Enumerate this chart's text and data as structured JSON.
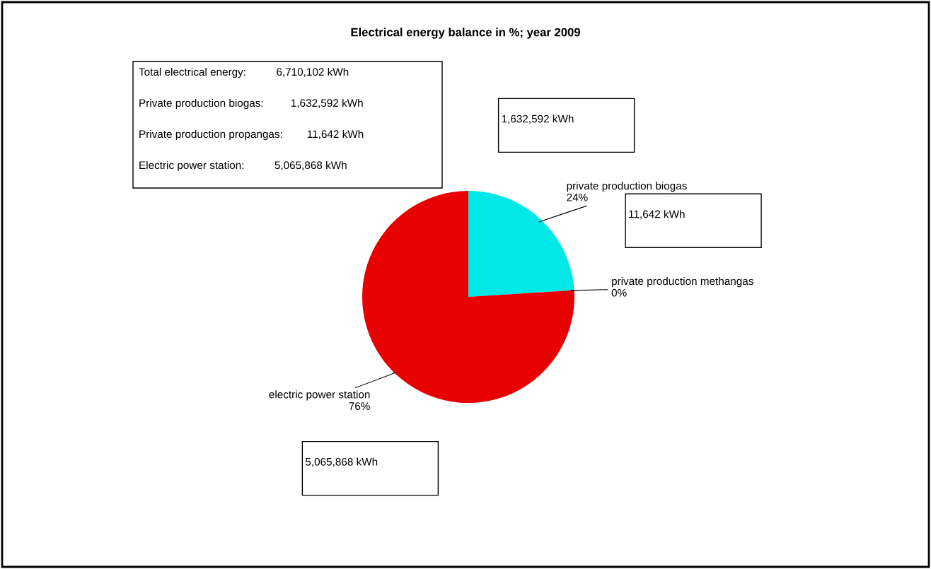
{
  "chart_data": {
    "type": "pie",
    "title": "Electrical energy balance in %; year 2009",
    "categories": [
      "private production biogas",
      "private production methangas",
      "electric power station"
    ],
    "values": [
      24,
      0,
      76
    ],
    "value_labels": [
      "24%",
      "0%",
      "76%"
    ],
    "colors": [
      "#00e8e8",
      "#9999ff",
      "#e80000"
    ],
    "annotations": [
      "Total electrical energy:          6,710,102 kWh",
      "Private production biogas:         1,632,592 kWh",
      "Private production propangas:        11,642 kWh",
      "Electric power station:          5,065,868 kWh",
      "1,632,592 kWh",
      "11,642 kWh",
      "5,065,868 kWh"
    ]
  }
}
